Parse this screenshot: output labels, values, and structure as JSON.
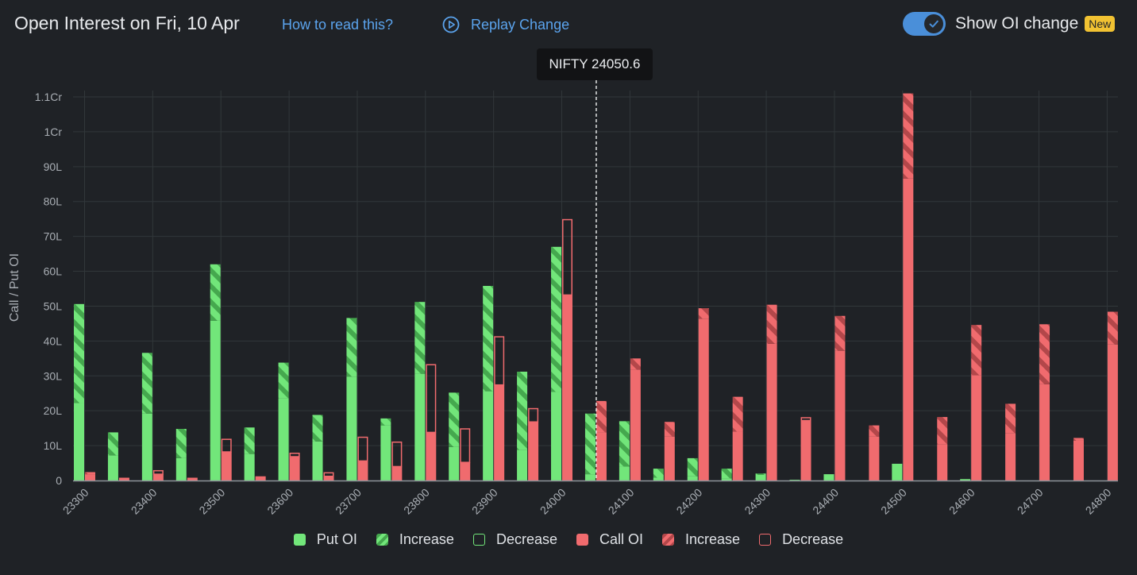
{
  "header": {
    "title": "Open Interest on Fri, 10 Apr",
    "how_link": "How to read this?",
    "replay_label": "Replay Change",
    "toggle_label": "Show OI change",
    "toggle_on": true,
    "badge": "New"
  },
  "tooltip": {
    "text": "NIFTY 24050.6"
  },
  "colors": {
    "put": "#72e67a",
    "put_dark": "#45a84e",
    "call": "#f06b6e",
    "call_dark": "#b3474a",
    "grid": "#31373a",
    "axis_text": "#a9aeb4",
    "link": "#5ba4ee"
  },
  "legend": [
    {
      "key": "put_oi",
      "label": "Put OI"
    },
    {
      "key": "put_increase",
      "label": "Increase"
    },
    {
      "key": "put_decrease",
      "label": "Decrease"
    },
    {
      "key": "call_oi",
      "label": "Call OI"
    },
    {
      "key": "call_increase",
      "label": "Increase"
    },
    {
      "key": "call_decrease",
      "label": "Decrease"
    }
  ],
  "chart_data": {
    "type": "bar",
    "title": "Open Interest on Fri, 10 Apr",
    "ylabel": "Call / Put OI",
    "xlabel": "",
    "ylim": [
      0,
      111
    ],
    "y_unit": "L",
    "yticks": [
      {
        "v": 0,
        "label": "0"
      },
      {
        "v": 10,
        "label": "10L"
      },
      {
        "v": 20,
        "label": "20L"
      },
      {
        "v": 30,
        "label": "30L"
      },
      {
        "v": 40,
        "label": "40L"
      },
      {
        "v": 50,
        "label": "50L"
      },
      {
        "v": 60,
        "label": "60L"
      },
      {
        "v": 70,
        "label": "70L"
      },
      {
        "v": 80,
        "label": "80L"
      },
      {
        "v": 90,
        "label": "90L"
      },
      {
        "v": 100,
        "label": "1Cr"
      },
      {
        "v": 110,
        "label": "1.1Cr"
      }
    ],
    "x_labels": [
      "23300",
      "23400",
      "23500",
      "23600",
      "23700",
      "23800",
      "23900",
      "24000",
      "24100",
      "24200",
      "24300",
      "24400",
      "24500",
      "24600",
      "24700",
      "24800"
    ],
    "strikes": [
      23300,
      23350,
      23400,
      23450,
      23500,
      23550,
      23600,
      23650,
      23700,
      23750,
      23800,
      23850,
      23900,
      23950,
      24000,
      24050,
      24100,
      24150,
      24200,
      24250,
      24300,
      24350,
      24400,
      24450,
      24500,
      24550,
      24600,
      24650,
      24700,
      24750,
      24800
    ],
    "spot": 24050.6,
    "series": [
      {
        "name": "Put OI",
        "values": [
          22.2,
          7.2,
          19.2,
          6.4,
          45.8,
          7.6,
          23.6,
          11.2,
          29.8,
          15.8,
          30.6,
          9.6,
          25.6,
          8.8,
          25.4,
          1.8,
          4.0,
          0.8,
          1.2,
          0.6,
          1.6,
          0.2,
          1.8,
          0.0,
          4.8,
          0.0,
          0.4,
          0.0,
          0.0,
          0.0,
          0.0
        ]
      },
      {
        "name": "Put OI Increase",
        "values": [
          28.4,
          6.6,
          17.4,
          8.4,
          16.2,
          7.6,
          10.2,
          7.6,
          16.8,
          2.0,
          20.6,
          15.6,
          30.2,
          22.4,
          41.6,
          17.4,
          13.0,
          2.6,
          5.2,
          2.8,
          0.4,
          0.0,
          0.0,
          0.0,
          0.0,
          0.0,
          0.0,
          0.0,
          0.0,
          0.0,
          0.0
        ]
      },
      {
        "name": "Put OI Decrease",
        "values": [
          0,
          0,
          0,
          0,
          0,
          0,
          0,
          0,
          0,
          0,
          0,
          0,
          0,
          0,
          0,
          0,
          0,
          0,
          0,
          0,
          0,
          0,
          0,
          0,
          0,
          0,
          0,
          0,
          0,
          0,
          0
        ]
      },
      {
        "name": "Call OI",
        "values": [
          1.8,
          0.8,
          1.8,
          0.8,
          8.2,
          1.2,
          6.4,
          1.2,
          5.6,
          4.0,
          13.8,
          5.2,
          27.4,
          16.8,
          53.2,
          13.8,
          31.8,
          12.6,
          46.4,
          14.0,
          39.2,
          17.2,
          37.2,
          12.6,
          86.6,
          10.4,
          30.2,
          13.6,
          27.6,
          11.4,
          39.0
        ]
      },
      {
        "name": "Call OI Increase",
        "values": [
          0.6,
          0,
          0,
          0,
          0,
          0,
          0.6,
          0,
          0,
          0,
          0,
          0,
          0,
          0,
          0,
          9.0,
          3.2,
          4.2,
          3.0,
          10.0,
          11.2,
          0.0,
          10.0,
          3.2,
          24.4,
          7.8,
          14.4,
          8.4,
          17.2,
          0.8,
          9.4
        ]
      },
      {
        "name": "Call OI Decrease",
        "values": [
          0,
          0,
          1.0,
          0,
          3.6,
          0,
          1.4,
          1.0,
          6.8,
          7.0,
          19.4,
          9.6,
          13.8,
          3.8,
          21.6,
          0,
          0,
          0,
          0,
          0,
          0,
          0.8,
          0,
          0,
          0,
          0,
          0,
          0,
          0,
          0,
          0
        ]
      }
    ]
  }
}
